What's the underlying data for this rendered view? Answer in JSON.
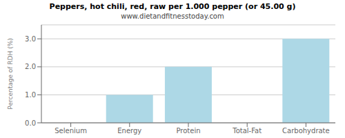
{
  "chart_data": {
    "type": "bar",
    "title": "Peppers, hot chili, red, raw per 1.000 pepper (or 45.00 g)",
    "subtitle": "www.dietandfitnesstoday.com",
    "categories": [
      "Selenium",
      "Energy",
      "Protein",
      "Total-Fat",
      "Carbohydrate"
    ],
    "values": [
      0.0,
      1.0,
      2.0,
      0.0,
      3.0
    ],
    "color": "#add8e6",
    "ylabel": "Percentage of RDH (%)",
    "ylim": [
      0,
      3.5
    ],
    "yticks": [
      {
        "value": 0,
        "label": "0.0"
      },
      {
        "value": 1,
        "label": "1.0"
      },
      {
        "value": 2,
        "label": "2.0"
      },
      {
        "value": 3,
        "label": "3.0"
      }
    ],
    "grid": true
  }
}
